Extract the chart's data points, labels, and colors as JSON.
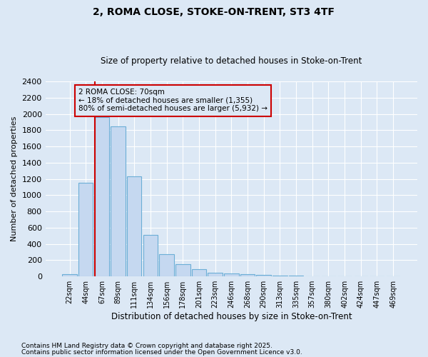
{
  "title": "2, ROMA CLOSE, STOKE-ON-TRENT, ST3 4TF",
  "subtitle": "Size of property relative to detached houses in Stoke-on-Trent",
  "xlabel": "Distribution of detached houses by size in Stoke-on-Trent",
  "ylabel": "Number of detached properties",
  "categories": [
    "22sqm",
    "44sqm",
    "67sqm",
    "89sqm",
    "111sqm",
    "134sqm",
    "156sqm",
    "178sqm",
    "201sqm",
    "223sqm",
    "246sqm",
    "268sqm",
    "290sqm",
    "313sqm",
    "335sqm",
    "357sqm",
    "380sqm",
    "402sqm",
    "424sqm",
    "447sqm",
    "469sqm"
  ],
  "values": [
    25,
    1150,
    1960,
    1850,
    1230,
    515,
    270,
    155,
    90,
    50,
    40,
    25,
    20,
    15,
    10,
    5,
    5,
    5,
    5,
    5,
    5
  ],
  "bar_color": "#c5d8f0",
  "bar_edge_color": "#6baed6",
  "highlight_bar_index": 2,
  "highlight_line_color": "#cc0000",
  "annotation_text": "2 ROMA CLOSE: 70sqm\n← 18% of detached houses are smaller (1,355)\n80% of semi-detached houses are larger (5,932) →",
  "annotation_box_edge_color": "#cc0000",
  "background_color": "#dce8f5",
  "plot_bg_color": "#dce8f5",
  "grid_color": "#ffffff",
  "ylim": [
    0,
    2400
  ],
  "yticks": [
    0,
    200,
    400,
    600,
    800,
    1000,
    1200,
    1400,
    1600,
    1800,
    2000,
    2200,
    2400
  ],
  "footnote1": "Contains HM Land Registry data © Crown copyright and database right 2025.",
  "footnote2": "Contains public sector information licensed under the Open Government Licence v3.0."
}
